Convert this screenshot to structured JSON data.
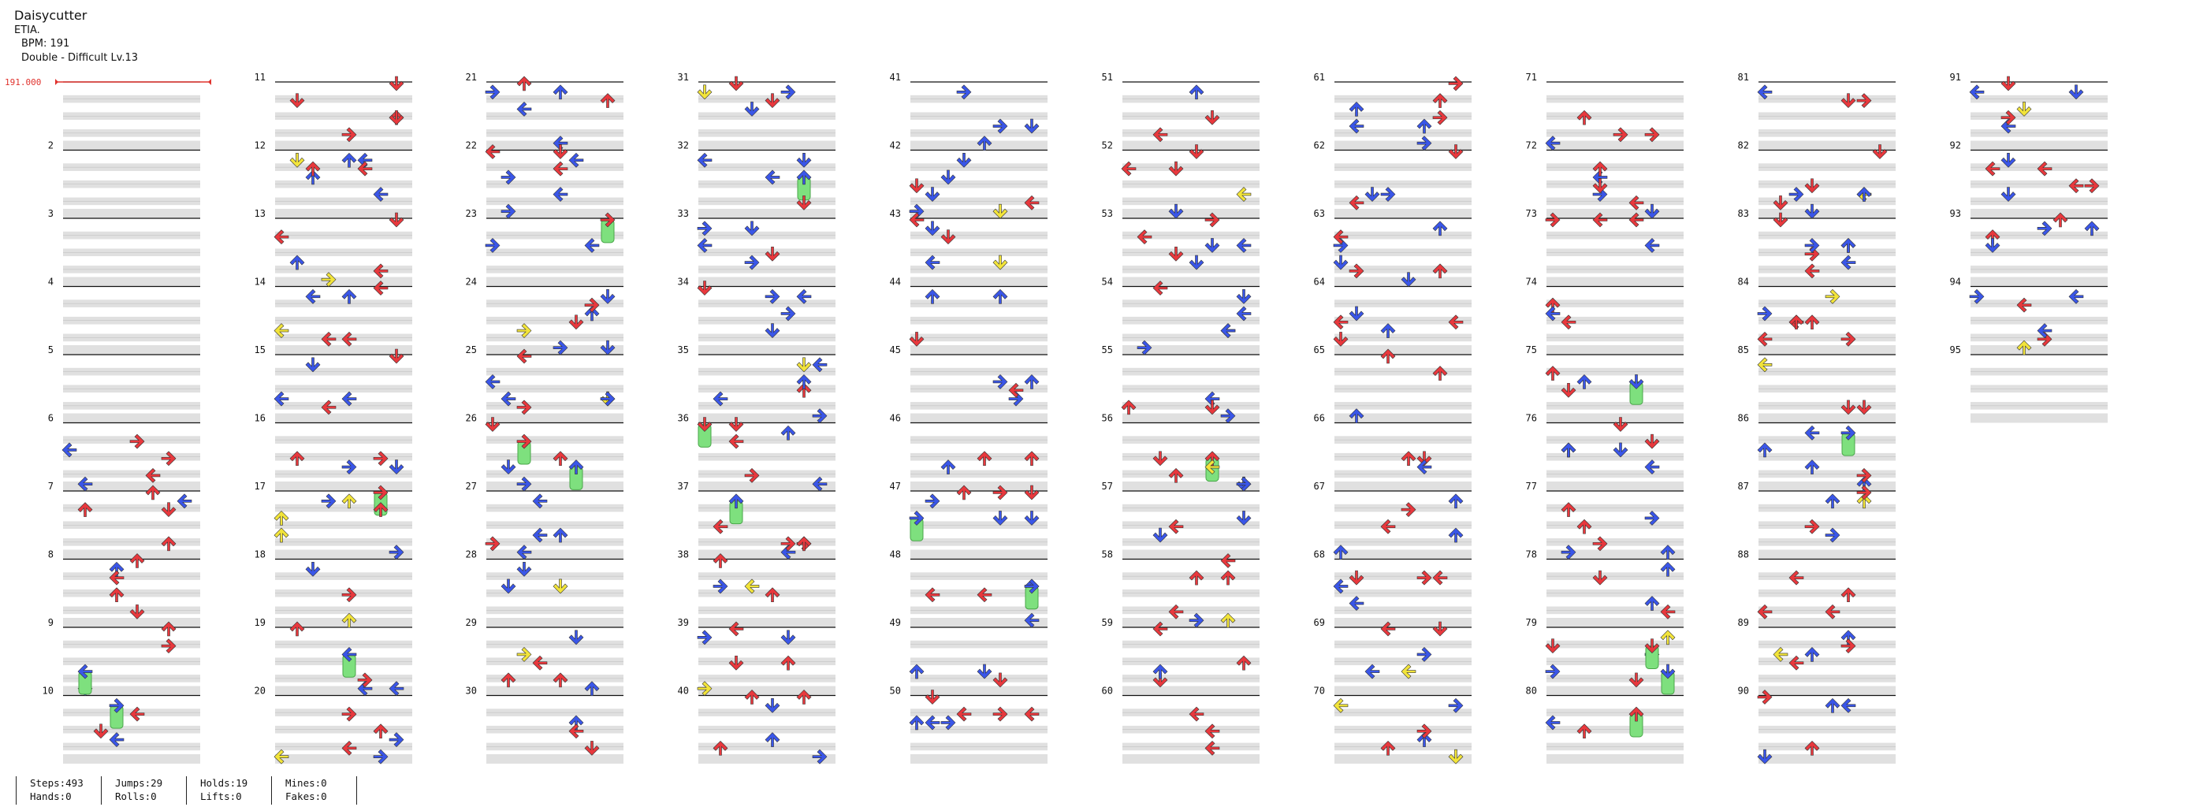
{
  "song": {
    "title": "Daisycutter",
    "artist": "ETIA.",
    "bpm_label": "BPM: 191",
    "chart_label": "Double - Difficult Lv.13"
  },
  "bpm_marker": "191.000",
  "measures": [
    "2",
    "3",
    "4",
    "5",
    "6",
    "7",
    "8",
    "9",
    "10",
    "11",
    "12",
    "13",
    "14",
    "15",
    "16",
    "17",
    "18",
    "19",
    "20",
    "21",
    "22",
    "23",
    "24",
    "25",
    "26",
    "27",
    "28",
    "29",
    "30",
    "31",
    "32",
    "33",
    "34",
    "35",
    "36",
    "37",
    "38",
    "39",
    "40",
    "41",
    "42",
    "43",
    "44",
    "45",
    "46",
    "47",
    "48",
    "49",
    "50",
    "51",
    "52",
    "53",
    "54",
    "55",
    "56",
    "57",
    "58",
    "59",
    "60",
    "61",
    "62",
    "63",
    "64",
    "65",
    "66",
    "67",
    "68",
    "69",
    "70",
    "71",
    "72",
    "73",
    "74",
    "75",
    "76",
    "77",
    "78",
    "79",
    "80",
    "81",
    "82",
    "83",
    "84",
    "85",
    "86",
    "87",
    "88",
    "89",
    "90",
    "91",
    "92",
    "93",
    "94",
    "95"
  ],
  "colors": {
    "quarter": "#e8383d",
    "eighth": "#3a56e8",
    "sixteenth": "#f2e43a",
    "hold": "#7ee07e",
    "lane": "#e0e0e0",
    "line": "#111111",
    "bpm": "#e0322d"
  },
  "stats": {
    "steps": "Steps:493",
    "hands": "Hands:0",
    "jumps": "Jumps:29",
    "rolls": "Rolls:0",
    "holds": "Holds:19",
    "lifts": "Lifts:0",
    "mines": "Mines:0",
    "fakes": "Fakes:0"
  }
}
